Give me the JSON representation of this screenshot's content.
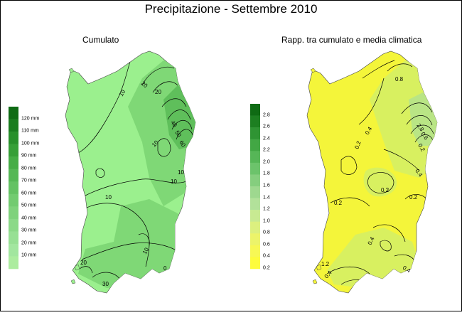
{
  "title": "Precipitazione - Settembre 2010",
  "panels": [
    {
      "title": "Cumulato",
      "legend": {
        "labels": [
          "120 mm",
          "110 mm",
          "100 mm",
          "90 mm",
          "80 mm",
          "70 mm",
          "60 mm",
          "50 mm",
          "40 mm",
          "30 mm",
          "20 mm",
          "10 mm"
        ],
        "colors": [
          "#0f6b14",
          "#1a7d1f",
          "#28902b",
          "#369f37",
          "#45ad45",
          "#55b855",
          "#64c263",
          "#72cb70",
          "#7fd27c",
          "#8bd988",
          "#97e094",
          "#a2e69f",
          "#acec9f"
        ]
      },
      "contour_labels": [
        "10",
        "20",
        "20",
        "40",
        "50",
        "60",
        "10",
        "10",
        "10",
        "10",
        "10",
        "20",
        "30",
        "0"
      ]
    },
    {
      "title": "Rapp. tra cumulato e media climatica",
      "legend": {
        "labels": [
          "2.8",
          "2.6",
          "2.4",
          "2.2",
          "2.0",
          "1.8",
          "1.6",
          "1.4",
          "1.2",
          "1.0",
          "0.8",
          "0.6",
          "0.4",
          "0.2"
        ],
        "colors": [
          "#0f6b14",
          "#1d7f21",
          "#2f9433",
          "#42a744",
          "#56b657",
          "#6cc36b",
          "#85ce7e",
          "#9ed88f",
          "#b2e19a",
          "#c8ea92",
          "#dcf07f",
          "#ecf46a",
          "#f7f855",
          "#fdfc3c"
        ]
      },
      "contour_labels": [
        "0.8",
        "0.4",
        "0.2",
        "0.2",
        "0.2",
        "0.2",
        "0.4",
        "0.2",
        "0.4",
        "0.6",
        "1.2",
        "2.8",
        "0.4",
        "0.4"
      ]
    }
  ],
  "colors": {
    "left_base": "#9bf08e",
    "left_mid": "#7fd876",
    "left_high": "#5fbf5b",
    "right_base": "#f4f53a",
    "right_mid": "#d8f060",
    "right_high": "#b9e585"
  }
}
